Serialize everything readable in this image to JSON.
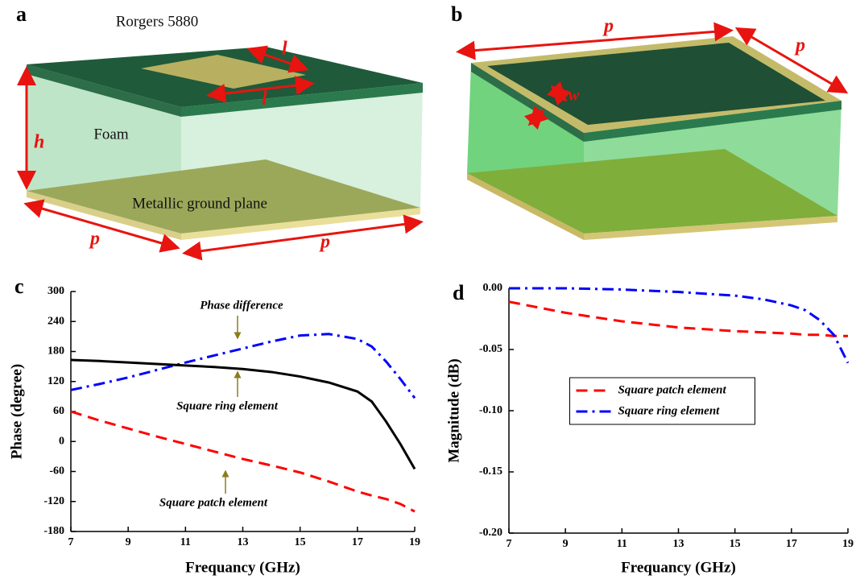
{
  "diagram_a": {
    "label": "a",
    "material_top": "Rorgers 5880",
    "middle": "Foam",
    "bottom": "Metallic ground plane",
    "dims": [
      "l",
      "l",
      "h",
      "p",
      "p"
    ]
  },
  "diagram_b": {
    "label": "b",
    "dims": [
      "p",
      "p",
      "w"
    ]
  },
  "chart_data": [
    {
      "type": "line",
      "label": "c",
      "x_label": "Frequancy (GHz)",
      "y_label": "Phase (degree)",
      "x": [
        7,
        8,
        9,
        10,
        11,
        12,
        13,
        14,
        15,
        16,
        17,
        17.5,
        18,
        18.5,
        19
      ],
      "xlim": [
        7,
        19
      ],
      "xticks": [
        7,
        9,
        11,
        13,
        15,
        17,
        19
      ],
      "ylim": [
        -180,
        300
      ],
      "yticks": [
        -180,
        -120,
        -60,
        0,
        60,
        120,
        180,
        240,
        300
      ],
      "series": [
        {
          "name": "Phase difference",
          "color": "#0000ff",
          "style": "dashdot",
          "values": [
            103,
            115,
            128,
            143,
            158,
            172,
            186,
            200,
            212,
            215,
            205,
            190,
            160,
            125,
            87
          ]
        },
        {
          "name": "Square ring element",
          "color": "#000000",
          "style": "solid",
          "values": [
            163,
            161,
            158,
            155,
            152,
            149,
            145,
            139,
            130,
            118,
            100,
            80,
            40,
            -5,
            -55
          ]
        },
        {
          "name": "Square patch element",
          "color": "#ff0000",
          "style": "dashed",
          "values": [
            60,
            42,
            26,
            10,
            -5,
            -20,
            -35,
            -48,
            -62,
            -80,
            -100,
            -108,
            -115,
            -125,
            -140
          ]
        }
      ]
    },
    {
      "type": "line",
      "label": "d",
      "x_label": "Frequancy (GHz)",
      "y_label": "Magnitude (dB)",
      "legend": "center",
      "x": [
        7,
        9,
        11,
        13,
        15,
        16,
        17,
        17.5,
        18,
        18.5,
        19
      ],
      "xlim": [
        7,
        19
      ],
      "xticks": [
        7,
        9,
        11,
        13,
        15,
        17,
        19
      ],
      "ylim": [
        -0.2,
        0
      ],
      "yticks": [
        {
          "value": -0.2,
          "label": "-0.20"
        },
        {
          "value": -0.15,
          "label": "-0.15"
        },
        {
          "value": -0.1,
          "label": "-0.10"
        },
        {
          "value": -0.05,
          "label": "-0.05"
        },
        {
          "value": 0,
          "label": "0.00"
        }
      ],
      "series": [
        {
          "name": "Square patch element",
          "color": "#ff0000",
          "style": "dashed",
          "values": [
            -0.011,
            -0.02,
            -0.027,
            -0.032,
            -0.035,
            -0.036,
            -0.037,
            -0.038,
            -0.038,
            -0.039,
            -0.039
          ]
        },
        {
          "name": "Square ring element",
          "color": "#0000ff",
          "style": "dashdot",
          "values": [
            0,
            0,
            -0.001,
            -0.003,
            -0.006,
            -0.009,
            -0.014,
            -0.018,
            -0.026,
            -0.038,
            -0.061
          ]
        }
      ]
    }
  ]
}
